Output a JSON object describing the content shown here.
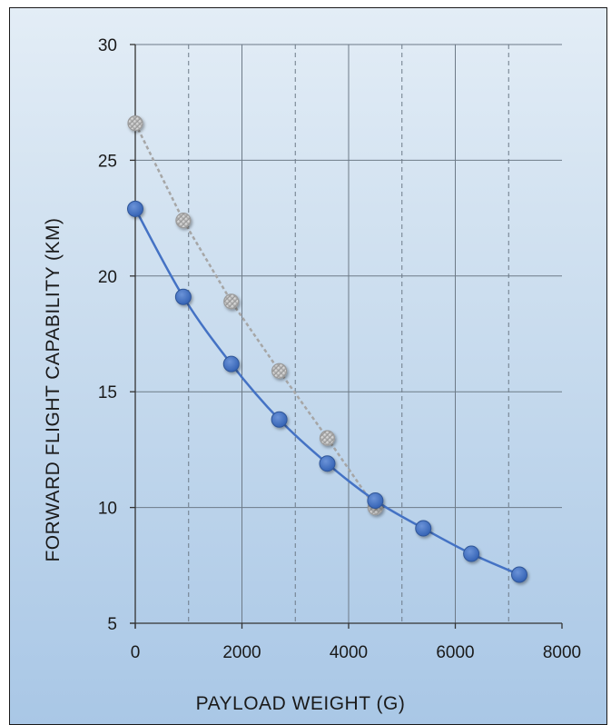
{
  "chart_data": {
    "type": "line",
    "title": "",
    "xlabel": "PAYLOAD WEIGHT (G)",
    "ylabel": "FORWARD  FLIGHT  CAPABILITY (KM)",
    "xlim": [
      0,
      8000
    ],
    "ylim": [
      5,
      30
    ],
    "x_ticks": [
      0,
      2000,
      4000,
      6000,
      8000
    ],
    "y_ticks": [
      5,
      10,
      15,
      20,
      25,
      30
    ],
    "grid": {
      "major": true,
      "minor_x_dashed": true
    },
    "legend": "none",
    "series": [
      {
        "style": "solid",
        "color": "#4472c4",
        "smooth": true,
        "x": [
          0,
          900,
          1800,
          2700,
          3600,
          4500,
          5400,
          6300,
          7200
        ],
        "y": [
          22.9,
          19.1,
          16.2,
          13.8,
          11.9,
          10.3,
          9.1,
          8.0,
          7.1
        ]
      },
      {
        "style": "dashed",
        "color": "#a6a6a6",
        "smooth": false,
        "x": [
          0,
          900,
          1800,
          2700,
          3600,
          4500
        ],
        "y": [
          26.6,
          22.4,
          18.9,
          15.9,
          13.0,
          10.0
        ]
      }
    ]
  }
}
